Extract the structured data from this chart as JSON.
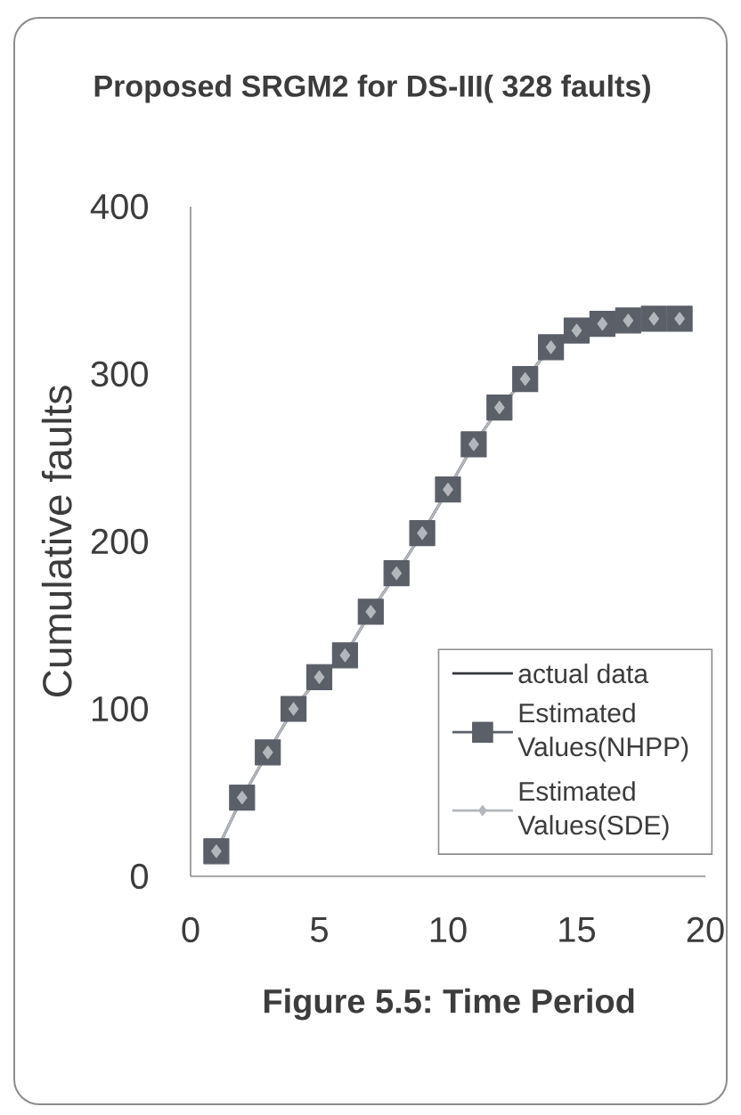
{
  "chart_data": {
    "type": "line",
    "title": "Proposed SRGM2 for DS-III( 328 faults)",
    "xlabel": "Figure 5.5: Time Period",
    "ylabel": "Cumulative faults",
    "x": [
      1,
      2,
      3,
      4,
      5,
      6,
      7,
      8,
      9,
      10,
      11,
      12,
      13,
      14,
      15,
      16,
      17,
      18,
      19
    ],
    "series": [
      {
        "name": "actual data",
        "color": "#34373c",
        "marker": "none",
        "values": [
          15,
          47,
          74,
          100,
          119,
          132,
          158,
          181,
          205,
          231,
          258,
          280,
          297,
          316,
          326,
          330,
          332,
          333,
          333
        ]
      },
      {
        "name": "Estimated Values(NHPP)",
        "color": "#5a5f68",
        "marker": "square",
        "values": [
          15,
          47,
          74,
          100,
          119,
          132,
          158,
          181,
          205,
          231,
          258,
          280,
          297,
          316,
          326,
          330,
          332,
          333,
          333
        ]
      },
      {
        "name": "Estimated Values(SDE)",
        "color": "#b3b7bc",
        "marker": "diamond",
        "values": [
          15,
          47,
          74,
          100,
          119,
          132,
          158,
          181,
          205,
          231,
          258,
          280,
          297,
          316,
          326,
          330,
          332,
          333,
          333
        ]
      }
    ],
    "xlim": [
      0,
      20
    ],
    "ylim": [
      0,
      400
    ],
    "xticks": [
      0,
      5,
      10,
      15,
      20
    ],
    "yticks": [
      0,
      100,
      200,
      300,
      400
    ],
    "legend": "right"
  }
}
